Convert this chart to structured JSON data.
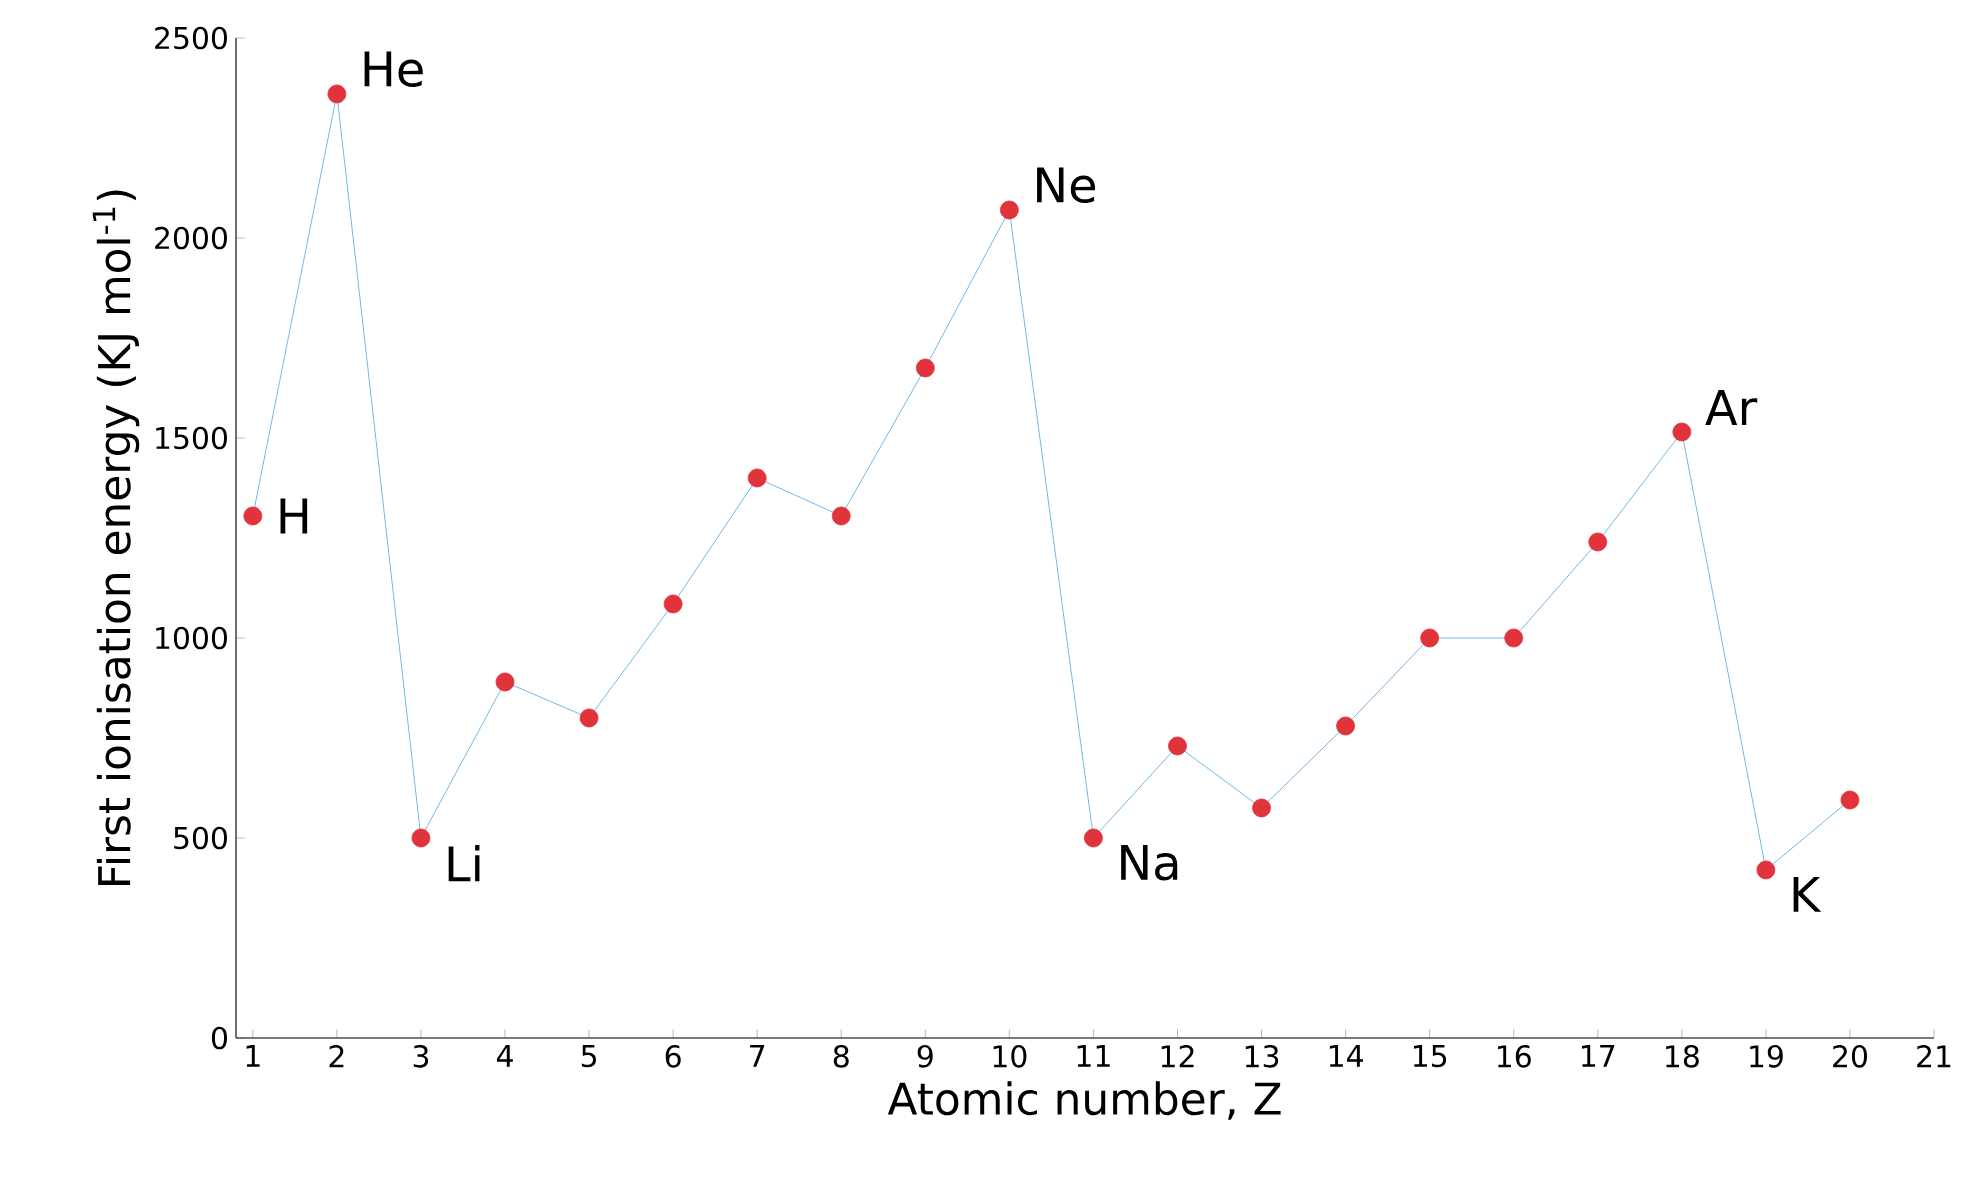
{
  "chart_data": {
    "type": "line",
    "xlabel": "Atomic number, Z",
    "ylabel": "First ionisation energy (KJ mol$^{-1}$)",
    "x": [
      1,
      2,
      3,
      4,
      5,
      6,
      7,
      8,
      9,
      10,
      11,
      12,
      13,
      14,
      15,
      16,
      17,
      18,
      19,
      20
    ],
    "series": [
      {
        "color": "#4aa8df",
        "colors": [
          "#e0333c",
          "#e0333c",
          "#e0333c",
          "#e0333c",
          "#e0333c",
          "#e0333c",
          "#e0333c",
          "#e0333c",
          "#e0333c",
          "#e0333c",
          "#e0333c",
          "#e0333c",
          "#e0333c",
          "#e0333c",
          "#e0333c",
          "#e0333c",
          "#e0333c",
          "#e0333c",
          "#e0333c",
          "#e0333c"
        ],
        "values": [
          1305,
          2360,
          500,
          890,
          800,
          1085,
          1400,
          1305,
          1675,
          2070,
          500,
          730,
          575,
          780,
          1000,
          1000,
          1240,
          1515,
          420,
          595
        ]
      }
    ],
    "marker": "circle",
    "line_style": "solid",
    "xlim": [
      0.8,
      21
    ],
    "ylim": [
      0,
      2500
    ],
    "xticks": [
      1,
      2,
      3,
      4,
      5,
      6,
      7,
      8,
      9,
      10,
      11,
      12,
      13,
      14,
      15,
      16,
      17,
      18,
      19,
      20,
      21
    ],
    "yticks": [
      0,
      500,
      1000,
      1500,
      2000,
      2500
    ],
    "grid": false,
    "annotations": [
      {
        "text": "H",
        "x": 1,
        "y": 1305
      },
      {
        "text": "He",
        "x": 2,
        "y": 2360
      },
      {
        "text": "Li",
        "x": 3,
        "y": 500
      },
      {
        "text": "Ne",
        "x": 10,
        "y": 2070
      },
      {
        "text": "Na",
        "x": 11,
        "y": 500
      },
      {
        "text": "Ar",
        "x": 18,
        "y": 1515
      },
      {
        "text": "K",
        "x": 19,
        "y": 420
      }
    ]
  }
}
